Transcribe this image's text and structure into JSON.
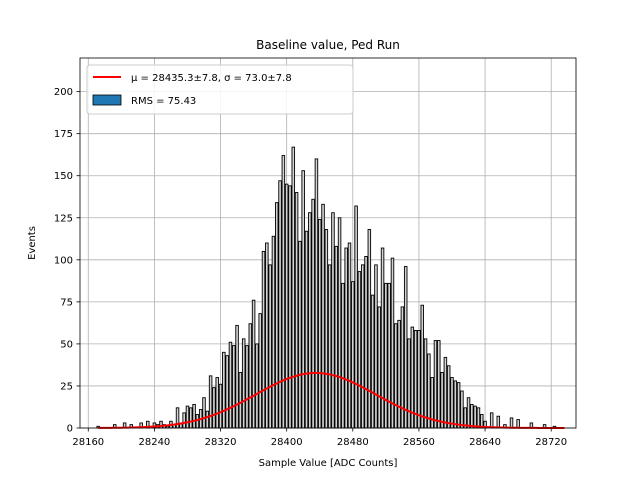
{
  "chart_data": {
    "type": "bar",
    "title": "Baseline value, Ped Run",
    "xlabel": "Sample Value [ADC Counts]",
    "ylabel": "Events",
    "xlim": [
      28150,
      28750
    ],
    "ylim": [
      0,
      220
    ],
    "xticks": [
      28160,
      28240,
      28320,
      28400,
      28480,
      28560,
      28640,
      28720
    ],
    "yticks": [
      0,
      25,
      50,
      75,
      100,
      125,
      150,
      175,
      200
    ],
    "grid": true,
    "legend_position": "top-left",
    "bar_color": "#d3d3d3",
    "bar_edge_color": "#000000",
    "fit_color": "#ff0000",
    "legend": [
      {
        "label": "$\\mu = 28435.3 \\pm 7.8$, $\\sigma = 73.0 \\pm 7.8$",
        "display": "μ = 28435.3±7.8, σ = 73.0±7.8",
        "kind": "line"
      },
      {
        "label": "RMS = 75.43",
        "display": "RMS = 75.43",
        "kind": "patch",
        "color": "#1f77b4"
      }
    ],
    "histogram": {
      "x": [
        28172,
        28192,
        28204,
        28212,
        28224,
        28232,
        28240,
        28244,
        28248,
        28252,
        28256,
        28260,
        28264,
        28268,
        28272,
        28276,
        28280,
        28284,
        28288,
        28292,
        28296,
        28300,
        28304,
        28308,
        28312,
        28316,
        28320,
        28324,
        28328,
        28332,
        28336,
        28340,
        28344,
        28348,
        28352,
        28356,
        28360,
        28364,
        28368,
        28372,
        28376,
        28380,
        28384,
        28388,
        28392,
        28396,
        28400,
        28404,
        28408,
        28412,
        28416,
        28420,
        28424,
        28428,
        28432,
        28436,
        28440,
        28444,
        28448,
        28452,
        28456,
        28460,
        28464,
        28468,
        28472,
        28476,
        28480,
        28484,
        28488,
        28492,
        28496,
        28500,
        28504,
        28508,
        28512,
        28516,
        28520,
        28524,
        28528,
        28532,
        28536,
        28540,
        28544,
        28548,
        28552,
        28556,
        28560,
        28564,
        28568,
        28572,
        28576,
        28580,
        28584,
        28588,
        28592,
        28596,
        28600,
        28604,
        28608,
        28612,
        28616,
        28620,
        28624,
        28628,
        28632,
        28636,
        28640,
        28648,
        28656,
        28664,
        28672,
        28680,
        28696,
        28712,
        28724
      ],
      "values": [
        1,
        2,
        3,
        2,
        3,
        4,
        3,
        2,
        4,
        2,
        1,
        4,
        2,
        12,
        3,
        9,
        13,
        12,
        14,
        8,
        11,
        18,
        10,
        31,
        24,
        30,
        26,
        45,
        43,
        51,
        49,
        61,
        33,
        53,
        49,
        62,
        76,
        50,
        68,
        105,
        110,
        97,
        114,
        134,
        147,
        162,
        145,
        144,
        167,
        140,
        111,
        153,
        117,
        128,
        136,
        160,
        124,
        133,
        118,
        97,
        128,
        108,
        125,
        86,
        107,
        110,
        87,
        132,
        93,
        97,
        102,
        118,
        79,
        97,
        72,
        107,
        86,
        86,
        101,
        62,
        64,
        72,
        96,
        53,
        60,
        58,
        58,
        73,
        53,
        44,
        30,
        52,
        52,
        33,
        42,
        37,
        30,
        28,
        27,
        22,
        12,
        18,
        14,
        13,
        12,
        8,
        4,
        9,
        7,
        2,
        6,
        5,
        3,
        2,
        1
      ]
    },
    "fit": {
      "mu": 28435.3,
      "sigma": 73.0,
      "amplitude": 32.7,
      "x_range": [
        28172,
        28736
      ]
    }
  }
}
